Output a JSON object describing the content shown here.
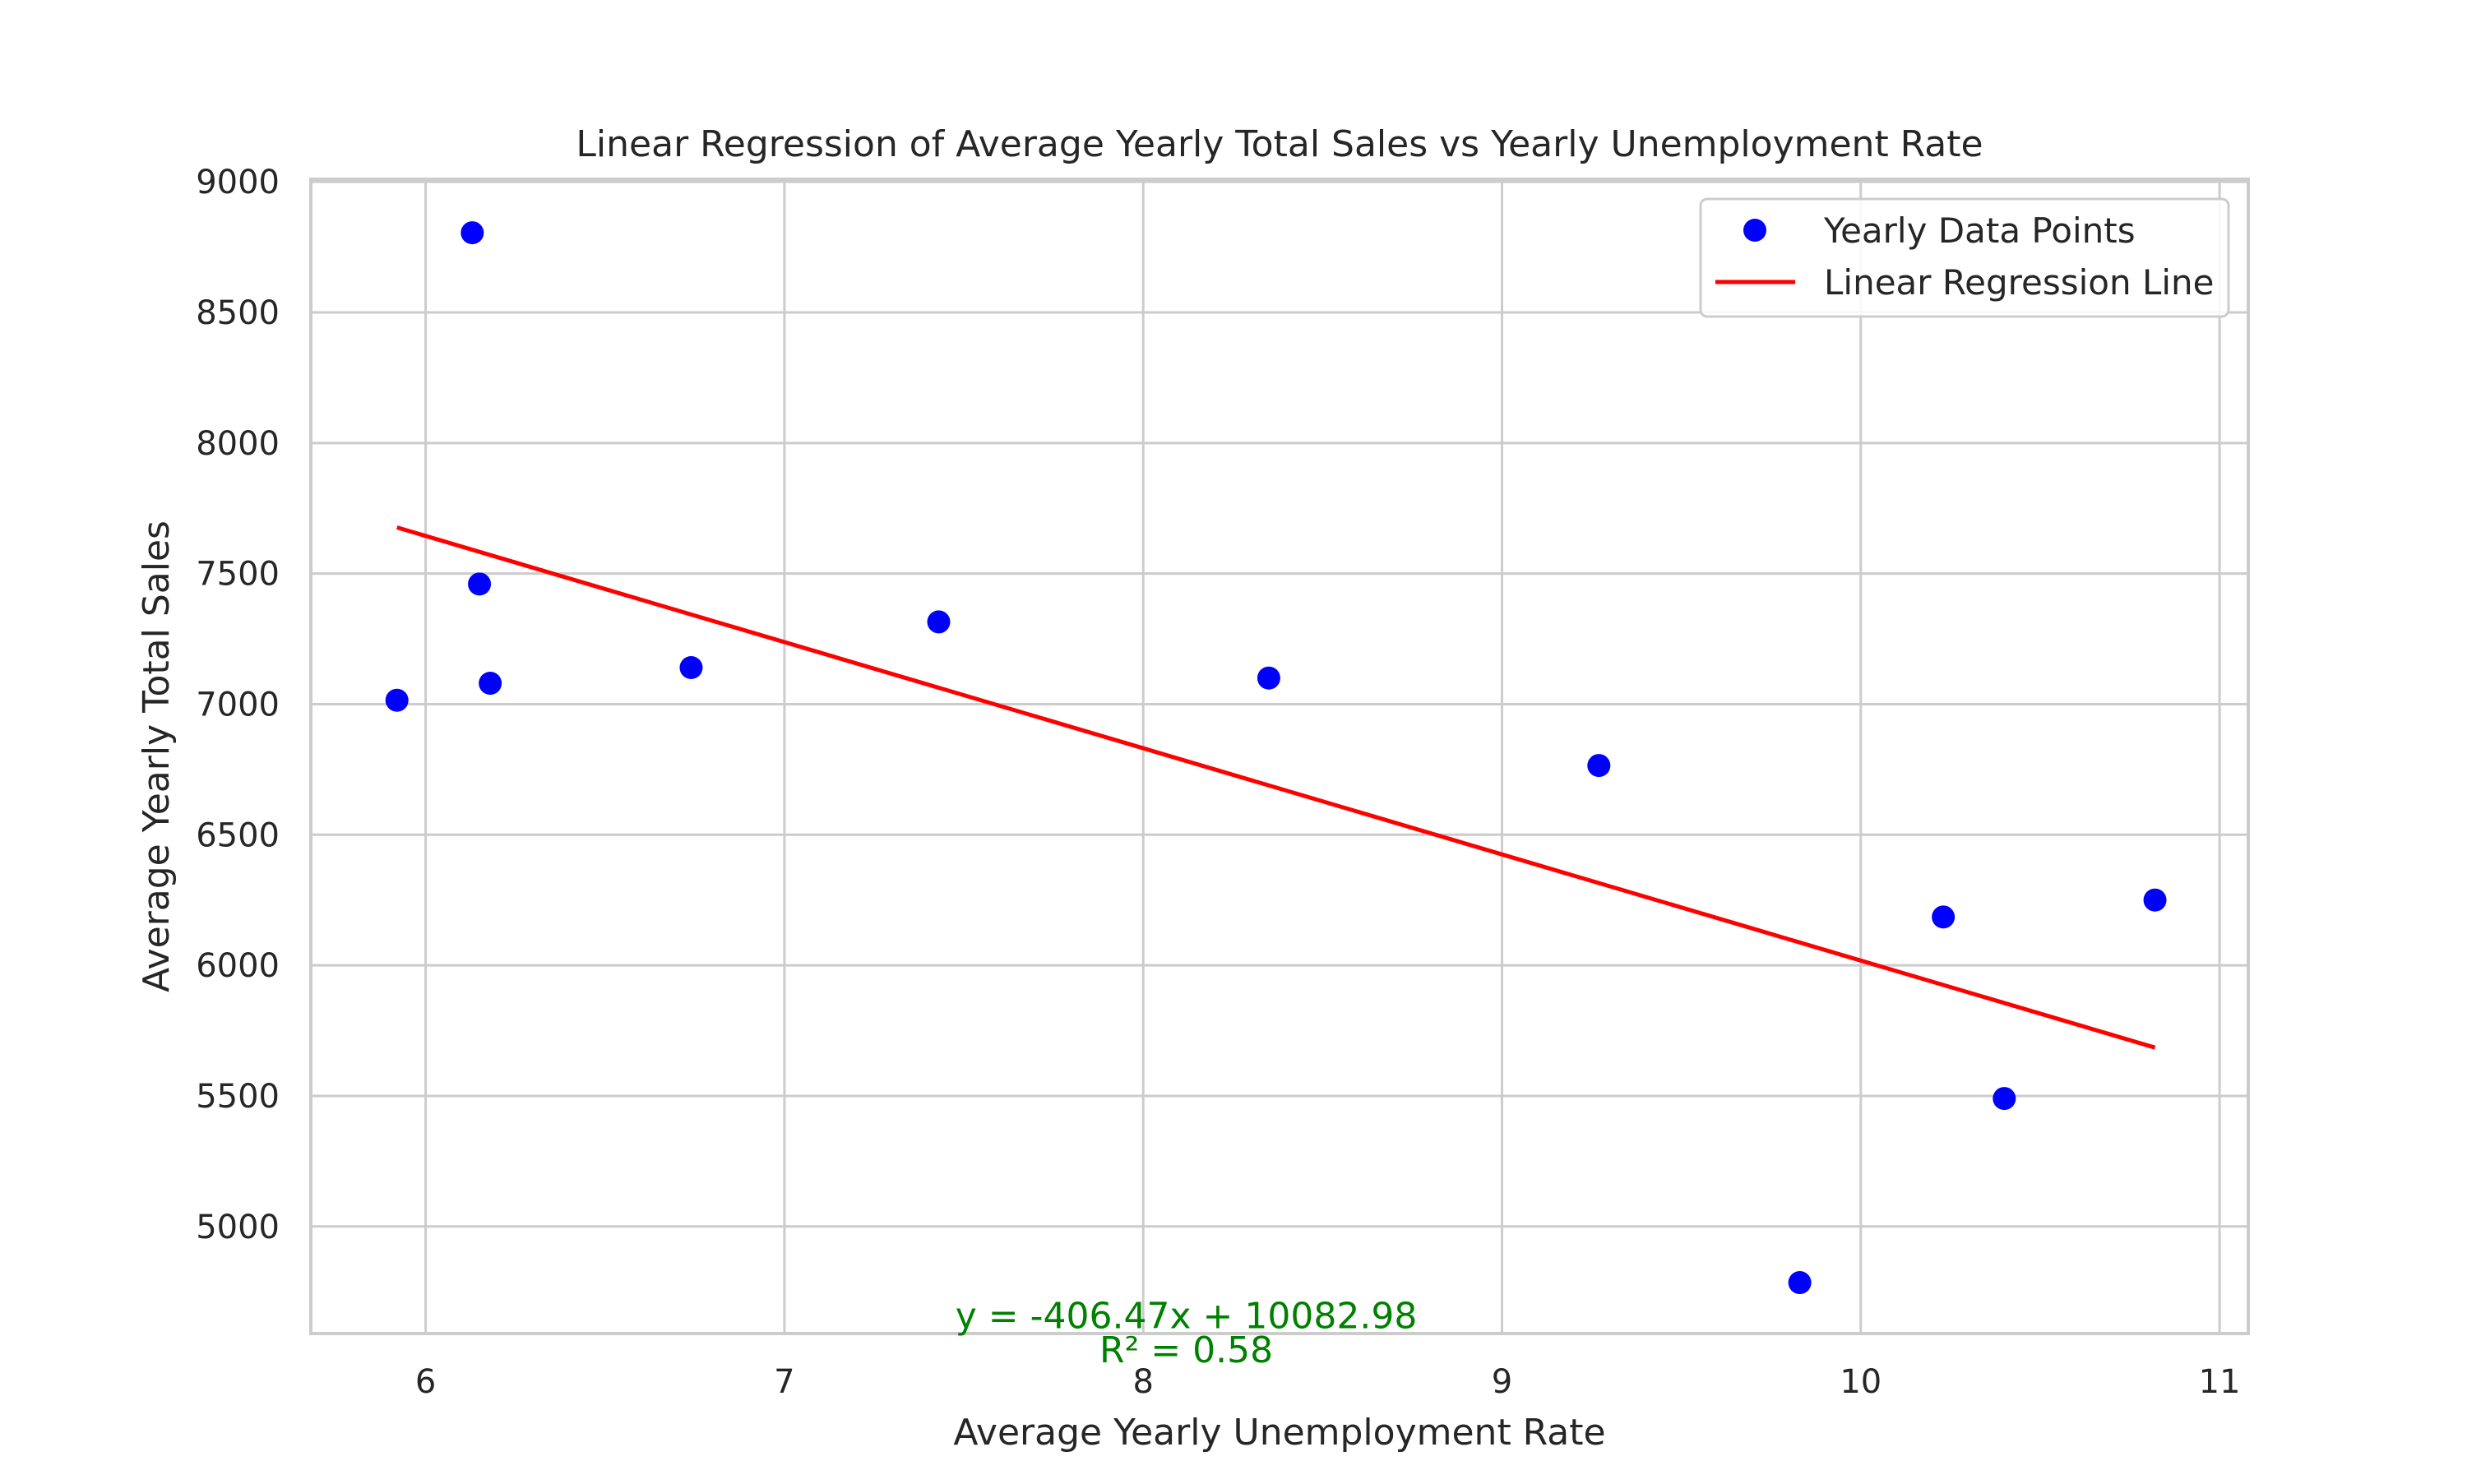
{
  "chart_data": {
    "type": "scatter",
    "title": "Linear Regression of Average Yearly Total Sales vs Yearly Unemployment Rate",
    "xlabel": "Average Yearly Unemployment Rate",
    "ylabel": "Average Yearly Total Sales",
    "xlim": [
      5.68,
      11.08
    ],
    "ylim": [
      4590,
      9010
    ],
    "xticks": [
      6,
      7,
      8,
      9,
      10,
      11
    ],
    "yticks": [
      5000,
      5500,
      6000,
      6500,
      7000,
      7500,
      8000,
      8500,
      9000
    ],
    "grid": true,
    "legend_position": "top-right",
    "series": [
      {
        "name": "Yearly Data Points",
        "kind": "scatter",
        "color": "#0000ff",
        "points": [
          {
            "x": 5.92,
            "y": 7015
          },
          {
            "x": 6.13,
            "y": 8805
          },
          {
            "x": 6.15,
            "y": 7460
          },
          {
            "x": 6.18,
            "y": 7080
          },
          {
            "x": 6.74,
            "y": 7140
          },
          {
            "x": 7.43,
            "y": 7315
          },
          {
            "x": 8.35,
            "y": 7100
          },
          {
            "x": 9.27,
            "y": 6765
          },
          {
            "x": 9.83,
            "y": 4785
          },
          {
            "x": 10.23,
            "y": 6185
          },
          {
            "x": 10.4,
            "y": 5490
          },
          {
            "x": 10.82,
            "y": 6250
          }
        ]
      },
      {
        "name": "Linear Regression Line",
        "kind": "line",
        "color": "#ff0000",
        "slope": -406.47,
        "intercept": 10082.98,
        "x_range": [
          5.92,
          10.82
        ]
      }
    ],
    "annotations": [
      {
        "text": "y = -406.47x + 10082.98",
        "x": 8.12,
        "y": 4610
      },
      {
        "text": "R² = 0.58",
        "x": 8.12,
        "y": 4480
      }
    ]
  }
}
